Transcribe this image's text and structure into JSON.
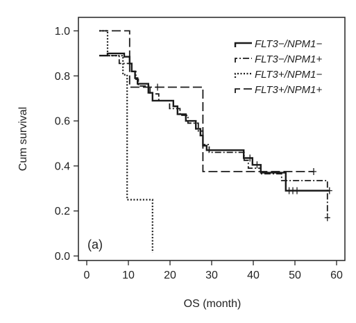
{
  "chart_data": {
    "type": "line",
    "subtype": "kaplan-meier",
    "panel_label": "(a)",
    "xlabel": "OS (month)",
    "ylabel": "Cum survival",
    "xlim": [
      -2,
      62
    ],
    "ylim": [
      -0.02,
      1.06
    ],
    "xticks": [
      0,
      10,
      20,
      30,
      40,
      50,
      60
    ],
    "yticks": [
      0.0,
      0.2,
      0.4,
      0.6,
      0.8,
      1.0
    ],
    "ytick_labels": [
      "0.0",
      "0.2",
      "0.4",
      "0.6",
      "0.8",
      "1.0"
    ],
    "grid": false,
    "legend_position": "top-right",
    "series": [
      {
        "name": "FLT3−/NPM1−",
        "dash": "solid",
        "stroke_width": 2.4,
        "steps": [
          [
            3,
            0.89
          ],
          [
            5,
            0.89
          ],
          [
            5,
            0.9
          ],
          [
            9,
            0.9
          ],
          [
            9,
            0.885
          ],
          [
            10.3,
            0.885
          ],
          [
            10.3,
            0.855
          ],
          [
            10.8,
            0.855
          ],
          [
            10.8,
            0.82
          ],
          [
            11.6,
            0.82
          ],
          [
            11.6,
            0.79
          ],
          [
            12.2,
            0.79
          ],
          [
            12.2,
            0.765
          ],
          [
            14.8,
            0.765
          ],
          [
            14.8,
            0.725
          ],
          [
            15.8,
            0.725
          ],
          [
            15.8,
            0.69
          ],
          [
            20.8,
            0.69
          ],
          [
            20.8,
            0.665
          ],
          [
            21.8,
            0.665
          ],
          [
            21.8,
            0.63
          ],
          [
            23.8,
            0.63
          ],
          [
            23.8,
            0.6
          ],
          [
            26.2,
            0.6
          ],
          [
            26.2,
            0.565
          ],
          [
            27.3,
            0.565
          ],
          [
            27.3,
            0.535
          ],
          [
            27.9,
            0.535
          ],
          [
            27.9,
            0.49
          ],
          [
            28.8,
            0.49
          ],
          [
            28.8,
            0.47
          ],
          [
            37.7,
            0.47
          ],
          [
            37.7,
            0.435
          ],
          [
            39.8,
            0.435
          ],
          [
            39.8,
            0.405
          ],
          [
            41.8,
            0.405
          ],
          [
            41.8,
            0.37
          ],
          [
            47.8,
            0.37
          ],
          [
            47.8,
            0.29
          ],
          [
            58.3,
            0.29
          ]
        ],
        "censors": [
          [
            39.2,
            0.435
          ],
          [
            40.9,
            0.405
          ],
          [
            48.6,
            0.29
          ],
          [
            49.5,
            0.29
          ],
          [
            50.5,
            0.29
          ],
          [
            58.3,
            0.29
          ]
        ]
      },
      {
        "name": "FLT3−/NPM1+",
        "dash": "dashdot",
        "stroke_width": 1.8,
        "steps": [
          [
            3,
            0.89
          ],
          [
            7.8,
            0.89
          ],
          [
            7.8,
            0.855
          ],
          [
            10.8,
            0.855
          ],
          [
            10.8,
            0.82
          ],
          [
            11.8,
            0.82
          ],
          [
            11.8,
            0.785
          ],
          [
            12.4,
            0.785
          ],
          [
            12.4,
            0.755
          ],
          [
            15.2,
            0.755
          ],
          [
            15.2,
            0.72
          ],
          [
            17.3,
            0.72
          ],
          [
            17.3,
            0.69
          ],
          [
            19.9,
            0.69
          ],
          [
            19.9,
            0.655
          ],
          [
            22.4,
            0.655
          ],
          [
            22.4,
            0.625
          ],
          [
            24.3,
            0.625
          ],
          [
            24.3,
            0.59
          ],
          [
            26.8,
            0.59
          ],
          [
            26.8,
            0.555
          ],
          [
            27.9,
            0.555
          ],
          [
            27.9,
            0.495
          ],
          [
            29.4,
            0.495
          ],
          [
            29.4,
            0.46
          ],
          [
            37.8,
            0.46
          ],
          [
            37.8,
            0.425
          ],
          [
            38.8,
            0.425
          ],
          [
            38.8,
            0.39
          ],
          [
            41.8,
            0.39
          ],
          [
            41.8,
            0.365
          ],
          [
            46.8,
            0.365
          ],
          [
            46.8,
            0.335
          ],
          [
            57.8,
            0.335
          ],
          [
            57.8,
            0.17
          ]
        ],
        "censors": [
          [
            57.8,
            0.17
          ]
        ]
      },
      {
        "name": "FLT3+/NPM1−",
        "dash": "dotted",
        "stroke_width": 2.2,
        "steps": [
          [
            3,
            1.0
          ],
          [
            5,
            1.0
          ],
          [
            5,
            0.89
          ],
          [
            8.7,
            0.89
          ],
          [
            8.7,
            0.805
          ],
          [
            9.7,
            0.805
          ],
          [
            9.7,
            0.25
          ],
          [
            15.8,
            0.25
          ],
          [
            15.8,
            0.015
          ]
        ],
        "censors": []
      },
      {
        "name": "FLT3+/NPM1+",
        "dash": "longdash",
        "stroke_width": 1.8,
        "steps": [
          [
            3,
            1.0
          ],
          [
            10.3,
            1.0
          ],
          [
            10.3,
            0.75
          ],
          [
            27.9,
            0.75
          ],
          [
            27.9,
            0.375
          ],
          [
            54.5,
            0.375
          ]
        ],
        "censors": [
          [
            17,
            0.75
          ],
          [
            54.5,
            0.375
          ]
        ]
      }
    ]
  }
}
